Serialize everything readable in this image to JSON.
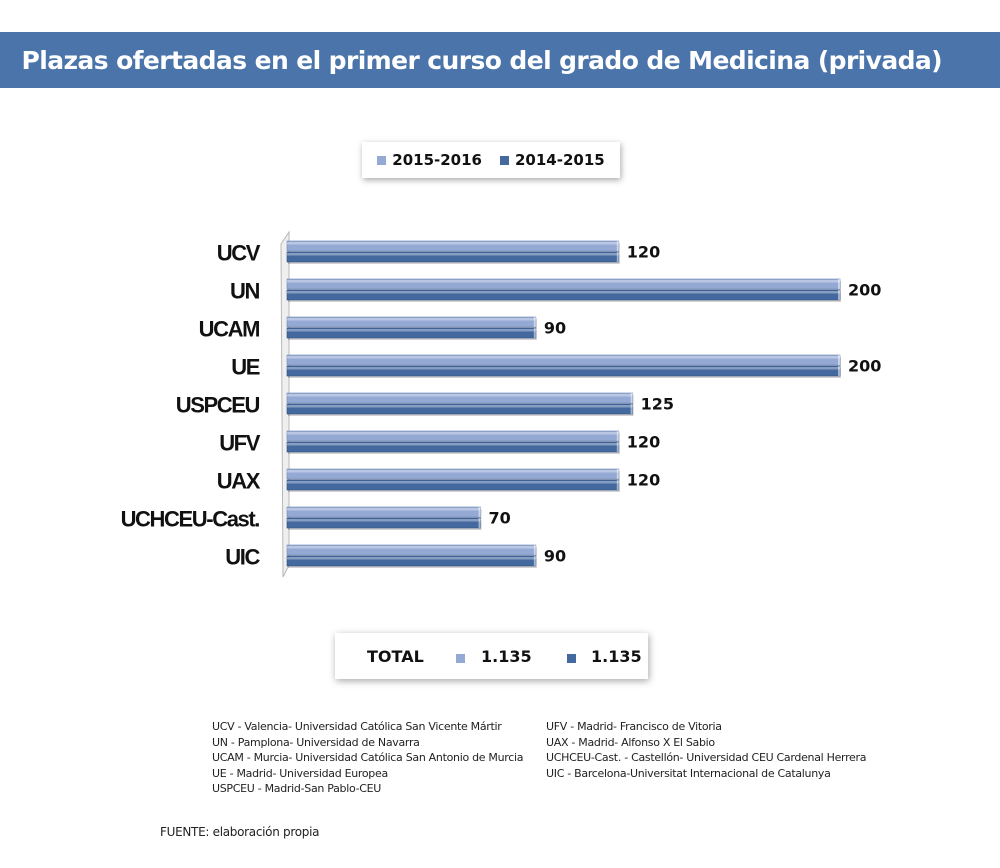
{
  "title": "Plazas ofertadas en el primer curso del grado de Medicina (privada)",
  "colors": {
    "title_bg": "#4a74aa",
    "series_2015_2016": "#94aad4",
    "series_2014_2015": "#44699f"
  },
  "chart_data": {
    "type": "bar",
    "orientation": "horizontal",
    "categories": [
      "UCV",
      "UN",
      "UCAM",
      "UE",
      "USPCEU",
      "UFV",
      "UAX",
      "UCHCEU-Cast.",
      "UIC"
    ],
    "series": [
      {
        "name": "2015-2016",
        "values": [
          120,
          200,
          90,
          200,
          125,
          120,
          120,
          70,
          90
        ]
      },
      {
        "name": "2014-2015",
        "values": [
          120,
          200,
          90,
          200,
          125,
          120,
          120,
          70,
          90
        ]
      }
    ],
    "data_labels": [
      "120",
      "200",
      "90",
      "200",
      "125",
      "120",
      "120",
      "70",
      "90"
    ],
    "legend_position": "top",
    "grid": false,
    "xlim": [
      0,
      200
    ]
  },
  "totals": {
    "label": "TOTAL",
    "value_2015_2016": "1.135",
    "value_2014_2015": "1.135"
  },
  "notes_left": [
    "UCV - Valencia- Universidad Católica San Vicente Mártir",
    "UN - Pamplona- Universidad de Navarra",
    "UCAM - Murcia- Universidad Católica San Antonio de Murcia",
    "UE - Madrid- Universidad Europea",
    "USPCEU - Madrid-San Pablo-CEU"
  ],
  "notes_right": [
    "UFV - Madrid- Francisco de Vitoria",
    "UAX - Madrid- Alfonso X El Sabio",
    "UCHCEU-Cast. - Castellón- Universidad CEU Cardenal Herrera",
    "UIC - Barcelona-Universitat Internacional de Catalunya"
  ],
  "source": "FUENTE: elaboración propia"
}
